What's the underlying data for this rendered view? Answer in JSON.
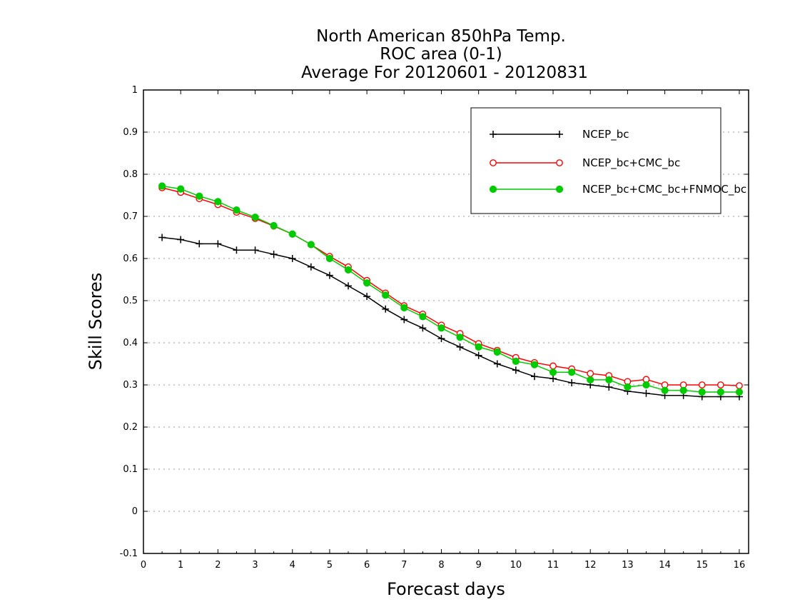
{
  "chart_data": {
    "type": "line",
    "title": [
      "North American 850hPa Temp.",
      "ROC area (0-1)",
      "Average For 20120601 - 20120831"
    ],
    "xlabel": "Forecast days",
    "ylabel": "Skill Scores",
    "xlim": [
      0,
      16.25
    ],
    "ylim": [
      -0.1,
      1
    ],
    "xticks": [
      0,
      1,
      2,
      3,
      4,
      5,
      6,
      7,
      8,
      9,
      10,
      11,
      12,
      13,
      14,
      15,
      16
    ],
    "yticks": [
      -0.1,
      0,
      0.1,
      0.2,
      0.3,
      0.4,
      0.5,
      0.6,
      0.7,
      0.8,
      0.9,
      1
    ],
    "ytick_labels": [
      "-0.1",
      "0",
      "0.1",
      "0.2",
      "0.3",
      "0.4",
      "0.5",
      "0.6",
      "0.7",
      "0.8",
      "0.9",
      "1"
    ],
    "grid": "horizontal dotted",
    "legend_position": "top-right",
    "x": [
      0.5,
      1,
      1.5,
      2,
      2.5,
      3,
      3.5,
      4,
      4.5,
      5,
      5.5,
      6,
      6.5,
      7,
      7.5,
      8,
      8.5,
      9,
      9.5,
      10,
      10.5,
      11,
      11.5,
      12,
      12.5,
      13,
      13.5,
      14,
      14.5,
      15,
      15.5,
      16
    ],
    "series": [
      {
        "name": "NCEP_bc",
        "color": "#000000",
        "marker": "plus",
        "values": [
          0.65,
          0.645,
          0.635,
          0.635,
          0.62,
          0.62,
          0.61,
          0.6,
          0.58,
          0.56,
          0.535,
          0.51,
          0.48,
          0.455,
          0.435,
          0.41,
          0.39,
          0.37,
          0.35,
          0.335,
          0.32,
          0.315,
          0.305,
          0.3,
          0.295,
          0.285,
          0.28,
          0.275,
          0.275,
          0.272,
          0.272,
          0.272
        ]
      },
      {
        "name": "NCEP_bc+CMC_bc",
        "color": "#ff0000",
        "marker": "open-circle",
        "values": [
          0.768,
          0.757,
          0.742,
          0.728,
          0.71,
          0.695,
          0.677,
          0.658,
          0.633,
          0.605,
          0.58,
          0.548,
          0.518,
          0.488,
          0.468,
          0.442,
          0.422,
          0.398,
          0.382,
          0.365,
          0.353,
          0.345,
          0.338,
          0.327,
          0.322,
          0.308,
          0.313,
          0.3,
          0.3,
          0.3,
          0.3,
          0.298
        ]
      },
      {
        "name": "NCEP_bc+CMC_bc+FNMOC_bc",
        "color": "#00cc00",
        "marker": "filled-circle",
        "values": [
          0.772,
          0.765,
          0.748,
          0.735,
          0.715,
          0.698,
          0.678,
          0.658,
          0.633,
          0.6,
          0.573,
          0.542,
          0.513,
          0.483,
          0.462,
          0.435,
          0.413,
          0.39,
          0.378,
          0.356,
          0.348,
          0.33,
          0.33,
          0.312,
          0.312,
          0.295,
          0.3,
          0.287,
          0.287,
          0.283,
          0.283,
          0.283
        ]
      }
    ]
  }
}
